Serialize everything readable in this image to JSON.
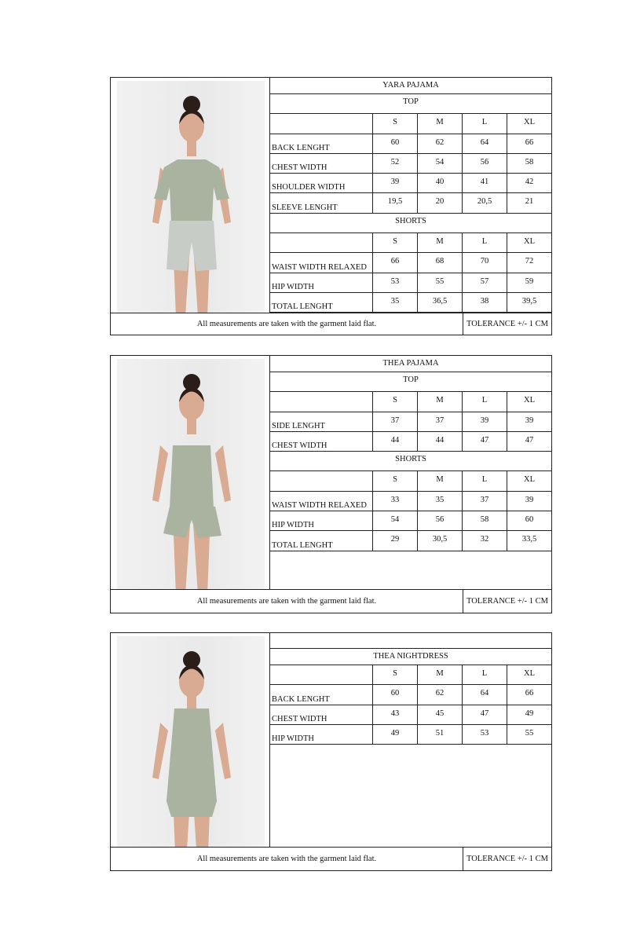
{
  "sizes": [
    "S",
    "M",
    "L",
    "XL"
  ],
  "footer": {
    "note": "All measurements are taken with the garment laid flat.",
    "tolerance": "TOLERANCE +/- 1 CM"
  },
  "garment_color": "#a9b3a0",
  "products": [
    {
      "title": "YARA PAJAMA",
      "photo": "model-in-tshirt-and-shorts",
      "sections": [
        {
          "label": "TOP",
          "rows": [
            {
              "name": "BACK LENGHT",
              "values": [
                "60",
                "62",
                "64",
                "66"
              ]
            },
            {
              "name": "CHEST WIDTH",
              "values": [
                "52",
                "54",
                "56",
                "58"
              ]
            },
            {
              "name": "SHOULDER WIDTH",
              "values": [
                "39",
                "40",
                "41",
                "42"
              ]
            },
            {
              "name": "SLEEVE LENGHT",
              "values": [
                "19,5",
                "20",
                "20,5",
                "21"
              ]
            }
          ]
        },
        {
          "label": "SHORTS",
          "rows": [
            {
              "name": "WAIST WIDTH RELAXED",
              "values": [
                "66",
                "68",
                "70",
                "72"
              ]
            },
            {
              "name": "HIP WIDTH",
              "values": [
                "53",
                "55",
                "57",
                "59"
              ]
            },
            {
              "name": "TOTAL LENGHT",
              "values": [
                "35",
                "36,5",
                "38",
                "39,5"
              ]
            }
          ]
        }
      ]
    },
    {
      "title": "THEA PAJAMA",
      "photo": "model-in-camisole-and-shorts",
      "sections": [
        {
          "label": "TOP",
          "rows": [
            {
              "name": "SIDE LENGHT",
              "values": [
                "37",
                "37",
                "39",
                "39"
              ]
            },
            {
              "name": "CHEST WIDTH",
              "values": [
                "44",
                "44",
                "47",
                "47"
              ]
            }
          ]
        },
        {
          "label": "SHORTS",
          "rows": [
            {
              "name": "WAIST WIDTH RELAXED",
              "values": [
                "33",
                "35",
                "37",
                "39"
              ]
            },
            {
              "name": "HIP WIDTH",
              "values": [
                "54",
                "56",
                "58",
                "60"
              ]
            },
            {
              "name": "TOTAL LENGHT",
              "values": [
                "29",
                "30,5",
                "32",
                "33,5"
              ]
            }
          ]
        }
      ]
    },
    {
      "title": "THEA NIGHTDRESS",
      "photo": "model-in-nightdress",
      "sections": [
        {
          "label": null,
          "rows": [
            {
              "name": "BACK LENGHT",
              "values": [
                "60",
                "62",
                "64",
                "66"
              ]
            },
            {
              "name": "CHEST WIDTH",
              "values": [
                "43",
                "45",
                "47",
                "49"
              ]
            },
            {
              "name": "HIP WIDTH",
              "values": [
                "49",
                "51",
                "53",
                "55"
              ]
            }
          ]
        }
      ]
    }
  ]
}
